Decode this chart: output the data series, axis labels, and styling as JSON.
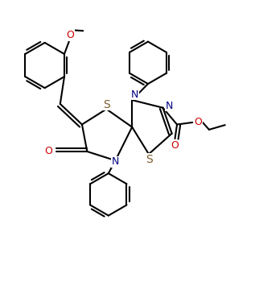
{
  "bg_color": "#ffffff",
  "line_color": "#000000",
  "N_color": "#000080",
  "S_color": "#7B5B2B",
  "O_color": "#cc0000",
  "line_width": 1.5,
  "font_size": 9,
  "figsize": [
    3.22,
    3.76
  ],
  "dpi": 100,
  "xlim": [
    0,
    10
  ],
  "ylim": [
    0,
    11.5
  ]
}
